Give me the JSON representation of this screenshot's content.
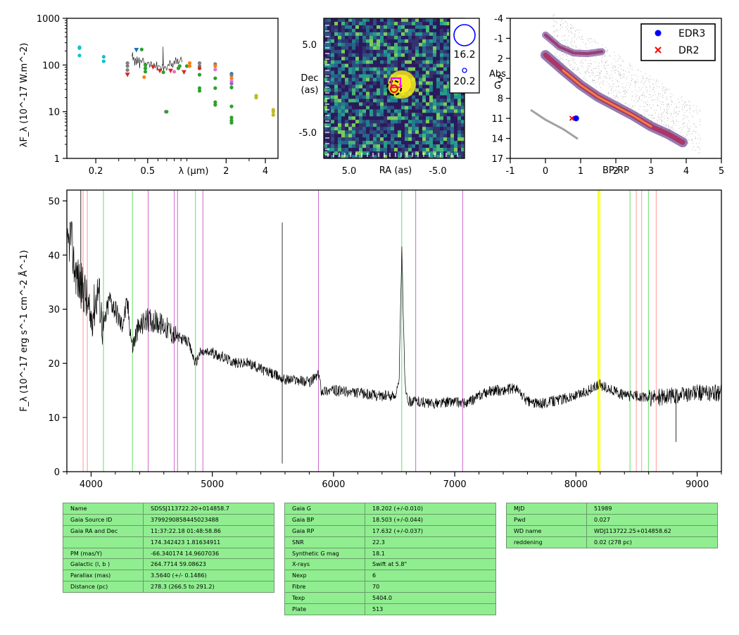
{
  "chart_data": [
    {
      "type": "scatter",
      "title": "",
      "xlabel": "λ (μm)",
      "ylabel": "λF_λ (10^-17 W.m^-2)",
      "xscale": "log",
      "yscale": "log",
      "xlim": [
        0.12,
        5.0
      ],
      "ylim": [
        1,
        1000
      ],
      "xticklabels": [
        "0.2",
        "0.5",
        "2",
        "4"
      ],
      "yticklabels": [
        "1",
        "10",
        "100",
        "1000"
      ],
      "points": [
        {
          "x": 0.15,
          "y": 240,
          "color": "#17becf"
        },
        {
          "x": 0.15,
          "y": 230,
          "color": "#17becf"
        },
        {
          "x": 0.15,
          "y": 160,
          "color": "#17becf"
        },
        {
          "x": 0.23,
          "y": 150,
          "color": "#17becf"
        },
        {
          "x": 0.23,
          "y": 120,
          "color": "#17becf"
        },
        {
          "x": 0.35,
          "y": 110,
          "color": "#7f7f7f"
        },
        {
          "x": 0.35,
          "y": 95,
          "color": "#7f7f7f"
        },
        {
          "x": 0.35,
          "y": 78,
          "color": "#7f7f7f"
        },
        {
          "x": 0.35,
          "y": 62,
          "color": "#d62728",
          "marker": "tri"
        },
        {
          "x": 0.41,
          "y": 210,
          "color": "#1f77b4",
          "marker": "tri"
        },
        {
          "x": 0.45,
          "y": 215,
          "color": "#2ca02c"
        },
        {
          "x": 0.47,
          "y": 55,
          "color": "#ff7f0e"
        },
        {
          "x": 0.48,
          "y": 100,
          "color": "#2ca02c"
        },
        {
          "x": 0.48,
          "y": 85,
          "color": "#2ca02c"
        },
        {
          "x": 0.48,
          "y": 72,
          "color": "#2ca02c"
        },
        {
          "x": 0.55,
          "y": 90,
          "color": "#d62728",
          "marker": "tri"
        },
        {
          "x": 0.62,
          "y": 75,
          "color": "#d62728",
          "marker": "tri"
        },
        {
          "x": 0.66,
          "y": 70,
          "color": "#2ca02c"
        },
        {
          "x": 0.69,
          "y": 10,
          "color": "#7f7f7f"
        },
        {
          "x": 0.7,
          "y": 10,
          "color": "#2ca02c"
        },
        {
          "x": 0.75,
          "y": 75,
          "color": "#d62728",
          "marker": "tri"
        },
        {
          "x": 0.8,
          "y": 72,
          "color": "#e377c2"
        },
        {
          "x": 0.86,
          "y": 85,
          "color": "#2ca02c"
        },
        {
          "x": 0.88,
          "y": 95,
          "color": "#2ca02c"
        },
        {
          "x": 0.95,
          "y": 70,
          "color": "#d62728",
          "marker": "tri"
        },
        {
          "x": 1.0,
          "y": 95,
          "color": "#2ca02c"
        },
        {
          "x": 1.05,
          "y": 110,
          "color": "#ff7f0e"
        },
        {
          "x": 1.05,
          "y": 95,
          "color": "#ff7f0e"
        },
        {
          "x": 1.25,
          "y": 110,
          "color": "#7f7f7f"
        },
        {
          "x": 1.25,
          "y": 95,
          "color": "#7f7f7f"
        },
        {
          "x": 1.25,
          "y": 62,
          "color": "#2ca02c"
        },
        {
          "x": 1.25,
          "y": 32,
          "color": "#2ca02c"
        },
        {
          "x": 1.25,
          "y": 28,
          "color": "#2ca02c"
        },
        {
          "x": 1.25,
          "y": 85,
          "color": "#d62728"
        },
        {
          "x": 1.65,
          "y": 105,
          "color": "#7f7f7f"
        },
        {
          "x": 1.65,
          "y": 95,
          "color": "#ff7f0e"
        },
        {
          "x": 1.65,
          "y": 80,
          "color": "#e377c2"
        },
        {
          "x": 1.65,
          "y": 52,
          "color": "#2ca02c"
        },
        {
          "x": 1.65,
          "y": 32,
          "color": "#2ca02c"
        },
        {
          "x": 1.65,
          "y": 16,
          "color": "#2ca02c"
        },
        {
          "x": 1.65,
          "y": 14,
          "color": "#2ca02c"
        },
        {
          "x": 2.2,
          "y": 65,
          "color": "#1f77b4"
        },
        {
          "x": 2.2,
          "y": 60,
          "color": "#7f7f7f"
        },
        {
          "x": 2.2,
          "y": 52,
          "color": "#ff7f0e"
        },
        {
          "x": 2.2,
          "y": 45,
          "color": "#e377c2"
        },
        {
          "x": 2.2,
          "y": 40,
          "color": "#9467bd"
        },
        {
          "x": 2.2,
          "y": 33,
          "color": "#2ca02c"
        },
        {
          "x": 2.2,
          "y": 13,
          "color": "#2ca02c"
        },
        {
          "x": 2.2,
          "y": 7.5,
          "color": "#2ca02c"
        },
        {
          "x": 2.2,
          "y": 6.5,
          "color": "#2ca02c"
        },
        {
          "x": 2.2,
          "y": 5.8,
          "color": "#2ca02c"
        },
        {
          "x": 3.4,
          "y": 22,
          "color": "#bcbd22"
        },
        {
          "x": 3.4,
          "y": 20,
          "color": "#bcbd22"
        },
        {
          "x": 4.6,
          "y": 11,
          "color": "#bcbd22"
        },
        {
          "x": 4.6,
          "y": 10,
          "color": "#bcbd22"
        },
        {
          "x": 4.6,
          "y": 8.5,
          "color": "#bcbd22"
        }
      ]
    },
    {
      "type": "heatmap",
      "title": "",
      "xlabel": "RA (as)",
      "ylabel": "Dec (as)",
      "xticklabels": [
        "5.0",
        "-5.0"
      ],
      "yticklabels": [
        "5.0",
        "-5.0"
      ],
      "legend": [
        {
          "label": "16.2",
          "marker": "large-circle",
          "color": "#0000ff"
        },
        {
          "label": "20.2",
          "marker": "small-circle",
          "color": "#0000ff"
        }
      ]
    },
    {
      "type": "scatter",
      "title": "",
      "xlabel": "BP-RP",
      "ylabel": "Abs G",
      "xlim": [
        -1,
        5
      ],
      "ylim": [
        17,
        -4
      ],
      "xticklabels": [
        "-1",
        "0",
        "1",
        "2",
        "3",
        "4",
        "5"
      ],
      "yticklabels": [
        "-4",
        "-1",
        "2",
        "5",
        "8",
        "11",
        "14",
        "17"
      ],
      "legend": [
        {
          "label": "EDR3",
          "marker": "circle",
          "color": "#0000ff"
        },
        {
          "label": "DR2",
          "marker": "x",
          "color": "#ff0000"
        }
      ],
      "points": [
        {
          "series": "EDR3",
          "x": 0.87,
          "y": 11.0
        },
        {
          "series": "DR2",
          "x": 0.75,
          "y": 11.0
        }
      ]
    },
    {
      "type": "line",
      "title": "",
      "xlabel": "",
      "ylabel": "F_λ (10^-17 erg s^-1 cm^-2 Å^-1)",
      "xlim": [
        3800,
        9200
      ],
      "ylim": [
        0,
        52
      ],
      "xticklabels": [
        "4000",
        "5000",
        "6000",
        "7000",
        "8000",
        "9000"
      ],
      "yticklabels": [
        "0",
        "10",
        "20",
        "30",
        "40",
        "50"
      ],
      "spectrum_knots": [
        [
          3800,
          40
        ],
        [
          3830,
          44
        ],
        [
          3860,
          38
        ],
        [
          3900,
          35
        ],
        [
          3950,
          33
        ],
        [
          3990,
          28
        ],
        [
          4020,
          30
        ],
        [
          4060,
          34
        ],
        [
          4100,
          26
        ],
        [
          4150,
          32
        ],
        [
          4200,
          30
        ],
        [
          4250,
          27
        ],
        [
          4300,
          31
        ],
        [
          4340,
          23
        ],
        [
          4380,
          26
        ],
        [
          4450,
          28
        ],
        [
          4500,
          28
        ],
        [
          4600,
          27
        ],
        [
          4700,
          25
        ],
        [
          4800,
          24
        ],
        [
          4861,
          20
        ],
        [
          4900,
          22
        ],
        [
          5000,
          22
        ],
        [
          5100,
          21
        ],
        [
          5200,
          20
        ],
        [
          5300,
          20
        ],
        [
          5400,
          19
        ],
        [
          5500,
          18
        ],
        [
          5600,
          17
        ],
        [
          5700,
          17
        ],
        [
          5800,
          16.5
        ],
        [
          5880,
          18
        ],
        [
          5900,
          15
        ],
        [
          6000,
          15
        ],
        [
          6200,
          14.5
        ],
        [
          6400,
          14
        ],
        [
          6500,
          14
        ],
        [
          6540,
          16
        ],
        [
          6563,
          41
        ],
        [
          6590,
          16
        ],
        [
          6620,
          13
        ],
        [
          6700,
          13
        ],
        [
          6800,
          12.5
        ],
        [
          7000,
          13
        ],
        [
          7100,
          12.5
        ],
        [
          7200,
          14
        ],
        [
          7300,
          15
        ],
        [
          7400,
          15
        ],
        [
          7500,
          15.5
        ],
        [
          7600,
          13
        ],
        [
          7700,
          12.5
        ],
        [
          7800,
          13
        ],
        [
          7900,
          13.5
        ],
        [
          8000,
          14
        ],
        [
          8100,
          15
        ],
        [
          8200,
          16
        ],
        [
          8300,
          15
        ],
        [
          8400,
          14
        ],
        [
          8500,
          14
        ],
        [
          8600,
          13.5
        ],
        [
          8800,
          14
        ],
        [
          9000,
          14.5
        ],
        [
          9200,
          14.5
        ]
      ],
      "spikes": [
        {
          "x": 5577,
          "y": 46
        },
        {
          "x": 5577,
          "y": 1.5
        },
        {
          "x": 3915,
          "y": 52
        },
        {
          "x": 8825,
          "y": 5.5
        }
      ],
      "vlines": [
        {
          "x": 3934,
          "color": "#ff9999"
        },
        {
          "x": 3969,
          "color": "#ff9999"
        },
        {
          "x": 4102,
          "color": "#66dd66"
        },
        {
          "x": 4341,
          "color": "#66dd66"
        },
        {
          "x": 4861,
          "color": "#66dd66"
        },
        {
          "x": 4471,
          "color": "#cc66cc"
        },
        {
          "x": 4686,
          "color": "#cc66cc"
        },
        {
          "x": 4713,
          "color": "#cc66cc"
        },
        {
          "x": 4922,
          "color": "#cc66cc"
        },
        {
          "x": 5876,
          "color": "#cc66cc"
        },
        {
          "x": 6678,
          "color": "#cc66cc"
        },
        {
          "x": 7065,
          "color": "#cc66cc"
        },
        {
          "x": 6563,
          "color": "#66dd66"
        },
        {
          "x": 8446,
          "color": "#66dd66"
        },
        {
          "x": 8598,
          "color": "#66dd66"
        },
        {
          "x": 8498,
          "color": "#ff9999"
        },
        {
          "x": 8542,
          "color": "#ff9999"
        },
        {
          "x": 8662,
          "color": "#ff9999"
        },
        {
          "x": 8183,
          "color": "#ffff33"
        },
        {
          "x": 8195,
          "color": "#ffff33"
        }
      ]
    }
  ],
  "tables": {
    "left": [
      [
        "Name",
        "SDSSJ113722.20+014858.7"
      ],
      [
        "Gaia Source ID",
        "3799290858445023488"
      ],
      [
        "Gaia RA and Dec",
        "11:37:22.18    01:48:58.86"
      ],
      [
        "",
        "174.342423    1.81634911"
      ],
      [
        "PM (mas/Y)",
        "-66.340174    14.9607036"
      ],
      [
        "Galactic (l, b )",
        "264.7714    59.08623"
      ],
      [
        "Parallax (mas)",
        "3.5640 (+/- 0.1486)"
      ],
      [
        "Distance (pc)",
        "278.3 (266.5 to 291.2)"
      ]
    ],
    "middle": [
      [
        "Gaia G",
        "18.202 (+/-0.010)"
      ],
      [
        "Gaia BP",
        "18.503 (+/-0.044)"
      ],
      [
        "Gaia RP",
        "17.632 (+/-0.037)"
      ],
      [
        "SNR",
        "22.3"
      ],
      [
        "Synthetic G mag",
        "18.1"
      ],
      [
        "X-rays",
        "Swift at 5.8\""
      ],
      [
        "Nexp",
        "6"
      ],
      [
        "Fibre",
        "70"
      ],
      [
        "Texp",
        "5404.0"
      ],
      [
        "Plate",
        "513"
      ]
    ],
    "right": [
      [
        "MJD",
        "51989"
      ],
      [
        "Pwd",
        "0.027"
      ],
      [
        "WD name",
        "WDJ113722.25+014858.62"
      ],
      [
        "reddening",
        "0.02 (278 pc)"
      ]
    ]
  }
}
